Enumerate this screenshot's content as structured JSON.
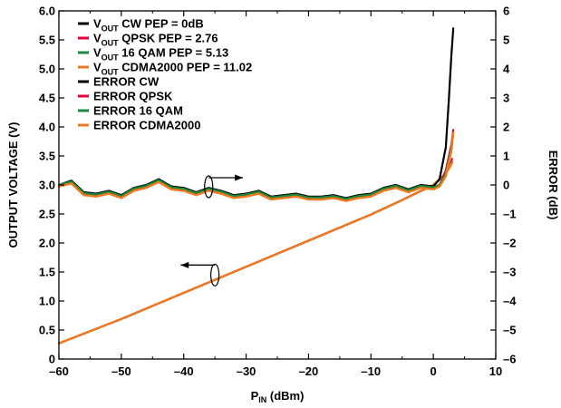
{
  "chart_data": {
    "type": "line",
    "xlabel": {
      "main": "P",
      "sub": "IN",
      "rest": " (dBm)"
    },
    "ylabel_left": "OUTPUT VOLTAGE (V)",
    "ylabel_right": "ERROR (dB)",
    "xlim": [
      -60,
      10
    ],
    "ylim_left": [
      0,
      6.0
    ],
    "ylim_right": [
      -6,
      6
    ],
    "x_ticks": [
      -60,
      -50,
      -40,
      -30,
      -20,
      -10,
      0,
      10
    ],
    "x_tick_labels": [
      "–60",
      "–50",
      "–40",
      "–30",
      "–20",
      "–10",
      "0",
      "10"
    ],
    "y_left_ticks": [
      0,
      0.5,
      1.0,
      1.5,
      2.0,
      2.5,
      3.0,
      3.5,
      4.0,
      4.5,
      5.0,
      5.5,
      6.0
    ],
    "y_left_tick_labels": [
      "0",
      "0.5",
      "1.0",
      "1.5",
      "2.0",
      "2.5",
      "3.0",
      "3.5",
      "4.0",
      "4.5",
      "5.0",
      "5.5",
      "6.0"
    ],
    "y_right_ticks": [
      -6,
      -5,
      -4,
      -3,
      -2,
      -1,
      0,
      1,
      2,
      3,
      4,
      5,
      6
    ],
    "y_right_tick_labels": [
      "–6",
      "–5",
      "–4",
      "–3",
      "–2",
      "–1",
      "0",
      "1",
      "2",
      "3",
      "4",
      "5",
      "6"
    ],
    "grid": false,
    "legend_placement": "top-left",
    "legend": [
      {
        "parts": [
          [
            "V",
            ""
          ],
          [
            "OUT",
            "sub"
          ],
          [
            " CW PEP = 0dB",
            ""
          ]
        ],
        "color": "#000000"
      },
      {
        "parts": [
          [
            "V",
            ""
          ],
          [
            "OUT",
            "sub"
          ],
          [
            "  QPSK PEP = 2.76",
            ""
          ]
        ],
        "color": "#e8003d"
      },
      {
        "parts": [
          [
            "V",
            ""
          ],
          [
            "OUT",
            "sub"
          ],
          [
            " 16 QAM PEP = 5.13",
            ""
          ]
        ],
        "color": "#1a8a3a"
      },
      {
        "parts": [
          [
            "V",
            ""
          ],
          [
            "OUT",
            "sub"
          ],
          [
            " CDMA2000 PEP = 11.02",
            ""
          ]
        ],
        "color": "#f07820"
      },
      {
        "parts": [
          [
            "ERROR CW",
            ""
          ]
        ],
        "color": "#000000"
      },
      {
        "parts": [
          [
            "ERROR QPSK",
            ""
          ]
        ],
        "color": "#e8003d"
      },
      {
        "parts": [
          [
            "ERROR 16 QAM",
            ""
          ]
        ],
        "color": "#1a8a3a"
      },
      {
        "parts": [
          [
            "ERROR CDMA2000",
            ""
          ]
        ],
        "color": "#f07820"
      }
    ],
    "series": [
      {
        "axis": "left",
        "color": "#000000",
        "width": 2.2,
        "x": [
          -60,
          -50,
          -40,
          -30,
          -20,
          -10,
          -5,
          0,
          1,
          2,
          2.6,
          3.0
        ],
        "y": [
          0.27,
          0.69,
          1.14,
          1.59,
          2.04,
          2.49,
          2.74,
          3.0,
          3.1,
          3.2,
          3.5,
          3.72
        ]
      },
      {
        "axis": "left",
        "color": "#e8003d",
        "width": 2.2,
        "x": [
          -60,
          -50,
          -40,
          -30,
          -20,
          -10,
          -5,
          0,
          1,
          2,
          2.6,
          3.0
        ],
        "y": [
          0.27,
          0.69,
          1.14,
          1.59,
          2.04,
          2.49,
          2.74,
          3.0,
          3.1,
          3.2,
          3.3,
          3.45
        ]
      },
      {
        "axis": "left",
        "color": "#1a8a3a",
        "width": 2.2,
        "x": [
          -60,
          -50,
          -40,
          -30,
          -20,
          -10,
          -5,
          0,
          1,
          2,
          2.6,
          3.0
        ],
        "y": [
          0.27,
          0.69,
          1.14,
          1.59,
          2.04,
          2.49,
          2.74,
          3.0,
          3.1,
          3.2,
          3.3,
          3.4
        ]
      },
      {
        "axis": "left",
        "color": "#f07820",
        "width": 2.4,
        "x": [
          -60,
          -50,
          -40,
          -30,
          -20,
          -10,
          -5,
          0,
          1,
          2,
          2.6,
          3.0
        ],
        "y": [
          0.27,
          0.69,
          1.14,
          1.59,
          2.04,
          2.49,
          2.74,
          3.0,
          3.1,
          3.2,
          3.3,
          3.38
        ]
      },
      {
        "axis": "right",
        "color": "#000000",
        "width": 2.2,
        "x": [
          -60,
          -58,
          -56,
          -54,
          -52,
          -50,
          -48,
          -46,
          -44,
          -42,
          -40,
          -38,
          -36,
          -34,
          -32,
          -30,
          -28,
          -26,
          -24,
          -22,
          -20,
          -18,
          -16,
          -14,
          -12,
          -10,
          -8,
          -6,
          -4,
          -2,
          0,
          1,
          2,
          2.5,
          2.9,
          3.2
        ],
        "y": [
          0.0,
          0.15,
          -0.25,
          -0.3,
          -0.2,
          -0.35,
          -0.1,
          0.0,
          0.2,
          -0.05,
          -0.1,
          -0.25,
          -0.1,
          -0.2,
          -0.35,
          -0.3,
          -0.2,
          -0.4,
          -0.35,
          -0.3,
          -0.4,
          -0.4,
          -0.35,
          -0.45,
          -0.35,
          -0.3,
          -0.1,
          0.0,
          -0.15,
          0.0,
          -0.05,
          0.2,
          1.3,
          3.0,
          4.5,
          5.4
        ]
      },
      {
        "axis": "right",
        "color": "#e8003d",
        "width": 2.2,
        "x": [
          -60,
          -58,
          -56,
          -54,
          -52,
          -50,
          -48,
          -46,
          -44,
          -42,
          -40,
          -38,
          -36,
          -34,
          -32,
          -30,
          -28,
          -26,
          -24,
          -22,
          -20,
          -18,
          -16,
          -14,
          -12,
          -10,
          -8,
          -6,
          -4,
          -2,
          0,
          1,
          2,
          2.5,
          2.9,
          3.2
        ],
        "y": [
          0.0,
          0.1,
          -0.3,
          -0.35,
          -0.25,
          -0.4,
          -0.15,
          -0.05,
          0.15,
          -0.1,
          -0.15,
          -0.3,
          -0.15,
          -0.25,
          -0.4,
          -0.35,
          -0.25,
          -0.45,
          -0.4,
          -0.35,
          -0.45,
          -0.45,
          -0.4,
          -0.5,
          -0.4,
          -0.35,
          -0.15,
          -0.05,
          -0.2,
          -0.05,
          -0.1,
          0.0,
          0.5,
          1.0,
          1.4,
          1.9
        ]
      },
      {
        "axis": "right",
        "color": "#1a8a3a",
        "width": 2.2,
        "x": [
          -60,
          -58,
          -56,
          -54,
          -52,
          -50,
          -48,
          -46,
          -44,
          -42,
          -40,
          -38,
          -36,
          -34,
          -32,
          -30,
          -28,
          -26,
          -24,
          -22,
          -20,
          -18,
          -16,
          -14,
          -12,
          -10,
          -8,
          -6,
          -4,
          -2,
          0,
          1,
          2,
          2.5,
          2.9,
          3.2
        ],
        "y": [
          0.0,
          0.12,
          -0.28,
          -0.33,
          -0.23,
          -0.38,
          -0.12,
          -0.03,
          0.17,
          -0.08,
          -0.13,
          -0.28,
          -0.13,
          -0.23,
          -0.38,
          -0.33,
          -0.23,
          -0.43,
          -0.38,
          -0.33,
          -0.43,
          -0.43,
          -0.38,
          -0.48,
          -0.38,
          -0.33,
          -0.13,
          -0.03,
          -0.18,
          -0.03,
          -0.08,
          0.0,
          0.4,
          0.9,
          1.3,
          1.8
        ]
      },
      {
        "axis": "right",
        "color": "#f07820",
        "width": 2.4,
        "x": [
          -60,
          -58,
          -56,
          -54,
          -52,
          -50,
          -48,
          -46,
          -44,
          -42,
          -40,
          -38,
          -36,
          -34,
          -32,
          -30,
          -28,
          -26,
          -24,
          -22,
          -20,
          -18,
          -16,
          -14,
          -12,
          -10,
          -8,
          -6,
          -4,
          -2,
          0,
          1,
          2,
          2.5,
          2.9,
          3.2
        ],
        "y": [
          -0.05,
          0.05,
          -0.35,
          -0.4,
          -0.3,
          -0.45,
          -0.2,
          -0.1,
          0.1,
          -0.15,
          -0.2,
          -0.35,
          -0.2,
          -0.3,
          -0.45,
          -0.4,
          -0.3,
          -0.5,
          -0.45,
          -0.4,
          -0.5,
          -0.5,
          -0.45,
          -0.55,
          -0.45,
          -0.4,
          -0.2,
          -0.1,
          -0.25,
          -0.1,
          -0.15,
          -0.05,
          0.3,
          0.8,
          1.2,
          1.8
        ]
      }
    ],
    "annotations": [
      {
        "type": "arrow",
        "direction": "right",
        "from_x": -36,
        "to_x": -30.5,
        "y_right": 0.25,
        "target_axis": "right"
      },
      {
        "type": "arrow",
        "direction": "left",
        "from_x": -35,
        "to_x": -40.5,
        "y_left": 1.62,
        "target_axis": "left"
      }
    ]
  }
}
